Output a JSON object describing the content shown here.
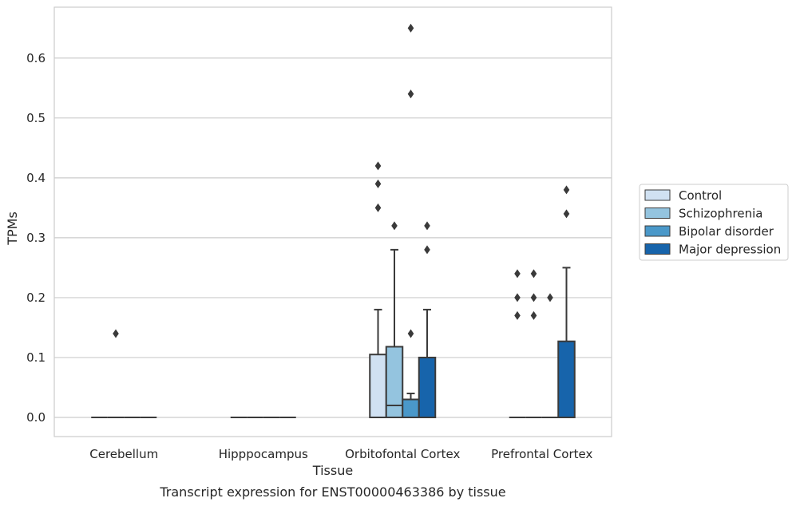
{
  "chart_data": {
    "type": "box",
    "title": "",
    "caption": "Transcript expression for ENST00000463386 by tissue",
    "xlabel": "Tissue",
    "ylabel": "TPMs",
    "ylim": [
      -0.032,
      0.685
    ],
    "yticks": [
      0.0,
      0.1,
      0.2,
      0.3,
      0.4,
      0.5,
      0.6
    ],
    "ytick_labels": [
      "0.0",
      "0.1",
      "0.2",
      "0.3",
      "0.4",
      "0.5",
      "0.6"
    ],
    "grid": "horizontal",
    "legend_position": "right",
    "categories": [
      "Cerebellum",
      "Hipppocampus",
      "Orbitofontal Cortex",
      "Prefrontal Cortex"
    ],
    "series": [
      {
        "name": "Control",
        "color": "#d0e1f2",
        "boxes": [
          {
            "q1": 0,
            "median": 0,
            "q3": 0,
            "whisker_low": 0,
            "whisker_high": 0,
            "outliers": []
          },
          {
            "q1": 0,
            "median": 0,
            "q3": 0,
            "whisker_low": 0,
            "whisker_high": 0,
            "outliers": []
          },
          {
            "q1": 0,
            "median": 0,
            "q3": 0.105,
            "whisker_low": 0,
            "whisker_high": 0.18,
            "outliers": [
              0.35,
              0.39,
              0.42
            ]
          },
          {
            "q1": 0,
            "median": 0,
            "q3": 0,
            "whisker_low": 0,
            "whisker_high": 0,
            "outliers": [
              0.17,
              0.2,
              0.24
            ]
          }
        ]
      },
      {
        "name": "Schizophrenia",
        "color": "#94c4df",
        "boxes": [
          {
            "q1": 0,
            "median": 0,
            "q3": 0,
            "whisker_low": 0,
            "whisker_high": 0,
            "outliers": [
              0.14
            ]
          },
          {
            "q1": 0,
            "median": 0,
            "q3": 0,
            "whisker_low": 0,
            "whisker_high": 0,
            "outliers": []
          },
          {
            "q1": 0,
            "median": 0.02,
            "q3": 0.118,
            "whisker_low": 0,
            "whisker_high": 0.28,
            "outliers": [
              0.32
            ]
          },
          {
            "q1": 0,
            "median": 0,
            "q3": 0,
            "whisker_low": 0,
            "whisker_high": 0,
            "outliers": [
              0.17,
              0.2,
              0.24
            ]
          }
        ]
      },
      {
        "name": "Bipolar disorder",
        "color": "#4a98c9",
        "boxes": [
          {
            "q1": 0,
            "median": 0,
            "q3": 0,
            "whisker_low": 0,
            "whisker_high": 0,
            "outliers": []
          },
          {
            "q1": 0,
            "median": 0,
            "q3": 0,
            "whisker_low": 0,
            "whisker_high": 0,
            "outliers": []
          },
          {
            "q1": 0,
            "median": 0,
            "q3": 0.03,
            "whisker_low": 0,
            "whisker_high": 0.04,
            "outliers": [
              0.14,
              0.54,
              0.65
            ]
          },
          {
            "q1": 0,
            "median": 0,
            "q3": 0,
            "whisker_low": 0,
            "whisker_high": 0,
            "outliers": [
              0.2
            ]
          }
        ]
      },
      {
        "name": "Major depression",
        "color": "#1764ab",
        "boxes": [
          {
            "q1": 0,
            "median": 0,
            "q3": 0,
            "whisker_low": 0,
            "whisker_high": 0,
            "outliers": []
          },
          {
            "q1": 0,
            "median": 0,
            "q3": 0,
            "whisker_low": 0,
            "whisker_high": 0,
            "outliers": []
          },
          {
            "q1": 0,
            "median": 0,
            "q3": 0.1,
            "whisker_low": 0,
            "whisker_high": 0.18,
            "outliers": [
              0.28,
              0.32
            ]
          },
          {
            "q1": 0,
            "median": 0,
            "q3": 0.127,
            "whisker_low": 0,
            "whisker_high": 0.25,
            "outliers": [
              0.34,
              0.38
            ]
          }
        ]
      }
    ],
    "colors": {
      "grid": "#cccccc",
      "frame": "#cccccc",
      "stroke": "#3a3a3a",
      "outlier": "#3a3a3a"
    }
  }
}
